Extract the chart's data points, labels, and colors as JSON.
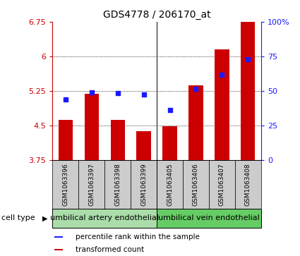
{
  "title": "GDS4778 / 206170_at",
  "samples": [
    "GSM1063396",
    "GSM1063397",
    "GSM1063398",
    "GSM1063399",
    "GSM1063405",
    "GSM1063406",
    "GSM1063407",
    "GSM1063408"
  ],
  "bar_values": [
    4.62,
    5.18,
    4.62,
    4.38,
    4.48,
    5.37,
    6.15,
    6.75
  ],
  "bar_bottom": 3.75,
  "percentile_values": [
    5.07,
    5.22,
    5.2,
    5.17,
    4.84,
    5.3,
    5.6,
    5.93
  ],
  "ylim_left": [
    3.75,
    6.75
  ],
  "ylim_right": [
    0,
    100
  ],
  "yticks_left": [
    3.75,
    4.5,
    5.25,
    6.0,
    6.75
  ],
  "ytick_labels_left": [
    "3.75",
    "4.5",
    "5.25",
    "6",
    "6.75"
  ],
  "yticks_right": [
    0,
    25,
    50,
    75,
    100
  ],
  "ytick_labels_right": [
    "0",
    "25",
    "50",
    "75",
    "100%"
  ],
  "bar_color": "#cc0000",
  "percentile_color": "#1a1aff",
  "axis_color_left": "#cc0000",
  "axis_color_right": "#1a1aff",
  "grid_dotted_at": [
    4.5,
    5.25,
    6.0
  ],
  "cell_types": [
    {
      "label": "umbilical artery endothelial",
      "start": 0,
      "end": 4,
      "color": "#aaddaa"
    },
    {
      "label": "umbilical vein endothelial",
      "start": 4,
      "end": 8,
      "color": "#66cc66"
    }
  ],
  "cell_type_label": "cell type",
  "legend_items": [
    {
      "label": "transformed count",
      "color": "#cc0000"
    },
    {
      "label": "percentile rank within the sample",
      "color": "#1a1aff"
    }
  ],
  "bar_width": 0.55,
  "title_fontsize": 10,
  "tick_fontsize": 8,
  "label_fontsize": 6.5,
  "celltype_fontsize": 8,
  "legend_fontsize": 7.5
}
